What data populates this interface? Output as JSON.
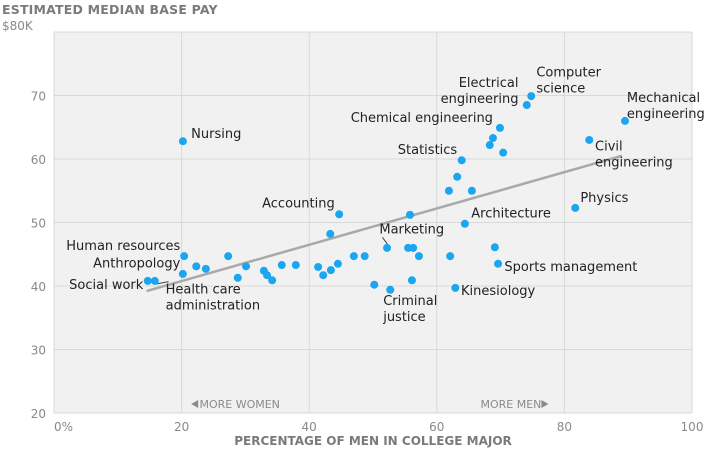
{
  "chart_data": {
    "type": "scatter",
    "title": "ESTIMATED MEDIAN BASE PAY",
    "xlabel": "PERCENTAGE OF MEN IN COLLEGE MAJOR",
    "ylabel": "",
    "xlim": [
      0,
      100
    ],
    "ylim": [
      20,
      80
    ],
    "grid": true,
    "x_ticks": [
      {
        "value": 0,
        "label": "0%"
      },
      {
        "value": 20,
        "label": "20"
      },
      {
        "value": 40,
        "label": "40"
      },
      {
        "value": 60,
        "label": "60"
      },
      {
        "value": 80,
        "label": "80"
      },
      {
        "value": 100,
        "label": "100"
      }
    ],
    "y_ticks": [
      {
        "value": 20,
        "label": "20"
      },
      {
        "value": 30,
        "label": "30"
      },
      {
        "value": 40,
        "label": "40"
      },
      {
        "value": 50,
        "label": "50"
      },
      {
        "value": 60,
        "label": "60"
      },
      {
        "value": 70,
        "label": "70"
      },
      {
        "value": 80,
        "label": "$80K"
      }
    ],
    "annotations": {
      "more_women": "MORE WOMEN",
      "more_men": "MORE MEN"
    },
    "colors": {
      "point": "#1ba6ef",
      "trend": "#a9a9a9",
      "plot_bg": "#f1f1f1",
      "grid": "#d9d9d9"
    },
    "trend_line": {
      "x": [
        14.5,
        89
      ],
      "y": [
        39.2,
        60.5
      ]
    },
    "points": [
      {
        "x": 20.2,
        "y": 62.8,
        "label": "Nursing",
        "lx": 21.5,
        "ly": 63.3,
        "anchor": "start"
      },
      {
        "x": 14.7,
        "y": 40.8,
        "label": "Social work",
        "lx": 14.0,
        "ly": 39.5,
        "anchor": "end"
      },
      {
        "x": 15.8,
        "y": 40.8,
        "label": "Health care\nadministration",
        "lx": 17.5,
        "ly": 38.8,
        "anchor": "start",
        "leader": true
      },
      {
        "x": 20.4,
        "y": 44.7,
        "label": "Human resources",
        "lx": 19.8,
        "ly": 45.7,
        "anchor": "end"
      },
      {
        "x": 20.2,
        "y": 41.9,
        "label": "Anthropology",
        "lx": 19.8,
        "ly": 42.9,
        "anchor": "end"
      },
      {
        "x": 22.3,
        "y": 43.1
      },
      {
        "x": 23.8,
        "y": 42.7
      },
      {
        "x": 27.3,
        "y": 44.7
      },
      {
        "x": 28.8,
        "y": 41.3
      },
      {
        "x": 30.1,
        "y": 43.1
      },
      {
        "x": 32.9,
        "y": 42.4
      },
      {
        "x": 33.4,
        "y": 41.7
      },
      {
        "x": 34.2,
        "y": 40.9
      },
      {
        "x": 35.7,
        "y": 43.3
      },
      {
        "x": 37.9,
        "y": 43.3
      },
      {
        "x": 41.4,
        "y": 43.0
      },
      {
        "x": 42.2,
        "y": 41.7
      },
      {
        "x": 43.4,
        "y": 42.5
      },
      {
        "x": 44.5,
        "y": 43.5
      },
      {
        "x": 47.0,
        "y": 44.7
      },
      {
        "x": 48.7,
        "y": 44.7
      },
      {
        "x": 44.7,
        "y": 51.3,
        "label": "Accounting",
        "lx": 44.0,
        "ly": 52.4,
        "anchor": "end"
      },
      {
        "x": 43.3,
        "y": 48.2
      },
      {
        "x": 52.2,
        "y": 46.0,
        "label": "Marketing",
        "lx": 51.0,
        "ly": 48.3,
        "anchor": "start",
        "leader": true
      },
      {
        "x": 55.5,
        "y": 46.0
      },
      {
        "x": 56.3,
        "y": 46.0
      },
      {
        "x": 57.2,
        "y": 44.7
      },
      {
        "x": 50.2,
        "y": 40.2
      },
      {
        "x": 52.7,
        "y": 39.4,
        "label": "Criminal\njustice",
        "lx": 51.6,
        "ly": 37.0,
        "anchor": "start"
      },
      {
        "x": 56.1,
        "y": 40.9
      },
      {
        "x": 55.8,
        "y": 51.2
      },
      {
        "x": 62.1,
        "y": 44.7
      },
      {
        "x": 62.9,
        "y": 39.7,
        "label": "Kinesiology",
        "lx": 63.8,
        "ly": 38.6,
        "anchor": "start"
      },
      {
        "x": 64.4,
        "y": 49.8,
        "label": "Architecture",
        "lx": 65.4,
        "ly": 50.8,
        "anchor": "start"
      },
      {
        "x": 63.9,
        "y": 59.8,
        "label": "Statistics",
        "lx": 63.2,
        "ly": 60.8,
        "anchor": "end"
      },
      {
        "x": 63.2,
        "y": 57.2
      },
      {
        "x": 61.9,
        "y": 55.0
      },
      {
        "x": 65.5,
        "y": 55.0
      },
      {
        "x": 69.9,
        "y": 64.9,
        "label": "Chemical engineering",
        "lx": 68.8,
        "ly": 65.8,
        "anchor": "end"
      },
      {
        "x": 68.8,
        "y": 63.3
      },
      {
        "x": 68.3,
        "y": 62.2
      },
      {
        "x": 70.4,
        "y": 61.0
      },
      {
        "x": 74.1,
        "y": 68.5,
        "label": "Electrical\nengineering",
        "lx": 72.8,
        "ly": 71.3,
        "anchor": "end"
      },
      {
        "x": 74.8,
        "y": 69.9,
        "label": "Computer\nscience",
        "lx": 75.6,
        "ly": 73.0,
        "anchor": "start"
      },
      {
        "x": 89.5,
        "y": 66.0,
        "label": "Mechanical\nengineering",
        "lx": 89.8,
        "ly": 69.0,
        "anchor": "start"
      },
      {
        "x": 83.9,
        "y": 63.0,
        "label": "Civil\nengineering",
        "lx": 84.8,
        "ly": 61.3,
        "anchor": "start"
      },
      {
        "x": 81.7,
        "y": 52.3,
        "label": "Physics",
        "lx": 82.5,
        "ly": 53.2,
        "anchor": "start"
      },
      {
        "x": 69.1,
        "y": 46.1
      },
      {
        "x": 69.6,
        "y": 43.5,
        "label": "Sports management",
        "lx": 70.6,
        "ly": 42.4,
        "anchor": "start"
      }
    ]
  }
}
